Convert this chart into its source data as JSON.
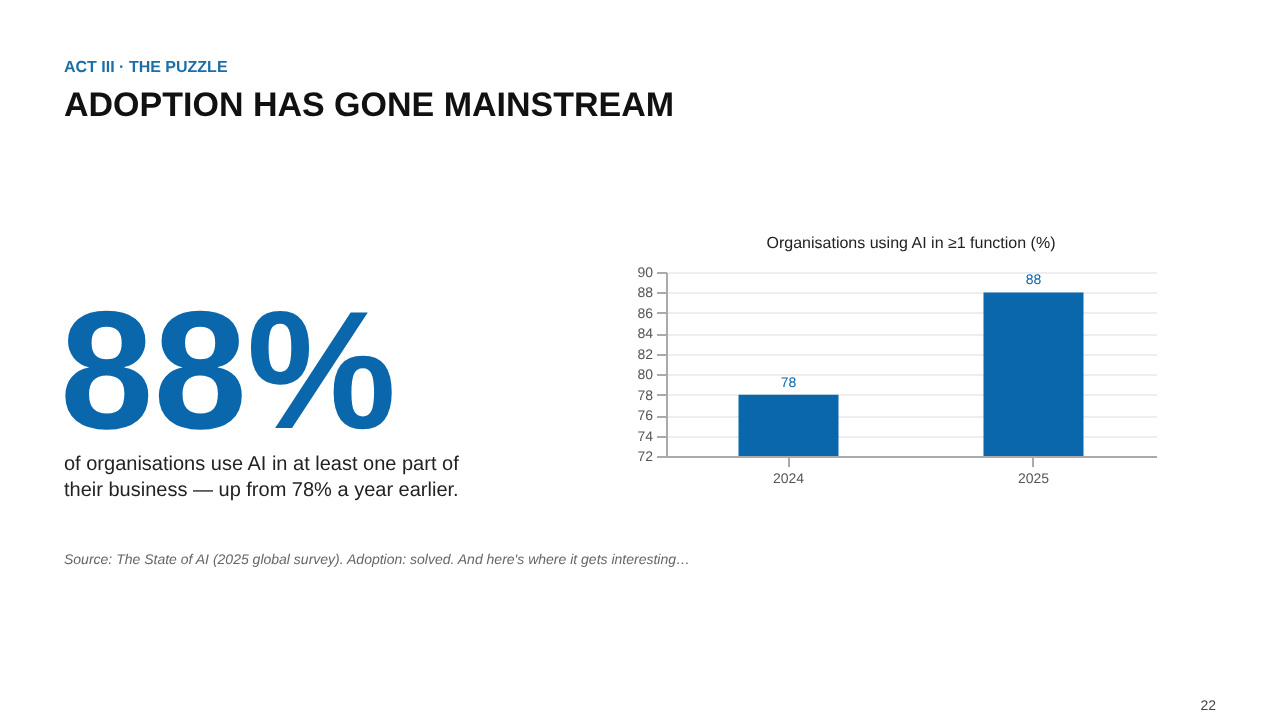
{
  "chart_data": [
    {
      "type": "other",
      "subtitle": "ACT III · THE PUZZLE",
      "title": "ADOPTION HAS GONE MAINSTREAM",
      "annotations": [
        "88%",
        "of organisations use AI in at least one part of their business — up from 78% a year earlier.",
        "Source: The State of AI (2025 global survey). Adoption: solved. And here's where it gets interesting…",
        "22"
      ]
    },
    {
      "type": "bar",
      "title": "Organisations using AI in ≥1 function (%)",
      "categories": [
        "2024",
        "2025"
      ],
      "values": [
        78,
        88
      ],
      "color": "#0a67ab",
      "ylim": [
        72,
        90
      ],
      "yticks": [
        72,
        74,
        76,
        78,
        80,
        82,
        84,
        86,
        88,
        90
      ],
      "grid": "y",
      "data_labels": true
    }
  ]
}
